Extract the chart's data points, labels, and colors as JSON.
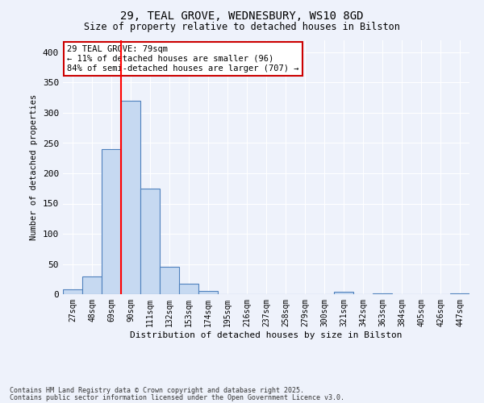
{
  "title1": "29, TEAL GROVE, WEDNESBURY, WS10 8GD",
  "title2": "Size of property relative to detached houses in Bilston",
  "xlabel": "Distribution of detached houses by size in Bilston",
  "ylabel": "Number of detached properties",
  "categories": [
    "27sqm",
    "48sqm",
    "69sqm",
    "90sqm",
    "111sqm",
    "132sqm",
    "153sqm",
    "174sqm",
    "195sqm",
    "216sqm",
    "237sqm",
    "258sqm",
    "279sqm",
    "300sqm",
    "321sqm",
    "342sqm",
    "363sqm",
    "384sqm",
    "405sqm",
    "426sqm",
    "447sqm"
  ],
  "values": [
    8,
    30,
    240,
    320,
    175,
    45,
    17,
    6,
    0,
    0,
    0,
    0,
    0,
    0,
    4,
    0,
    2,
    0,
    0,
    0,
    2
  ],
  "bar_color": "#c6d9f1",
  "bar_edge_color": "#4f81bd",
  "red_line_x": 2.5,
  "annotation_text": "29 TEAL GROVE: 79sqm\n← 11% of detached houses are smaller (96)\n84% of semi-detached houses are larger (707) →",
  "annotation_box_color": "#ffffff",
  "annotation_box_edge": "#cc0000",
  "background_color": "#eef2fb",
  "grid_color": "#ffffff",
  "footnote1": "Contains HM Land Registry data © Crown copyright and database right 2025.",
  "footnote2": "Contains public sector information licensed under the Open Government Licence v3.0.",
  "ylim": [
    0,
    420
  ],
  "yticks": [
    0,
    50,
    100,
    150,
    200,
    250,
    300,
    350,
    400
  ]
}
